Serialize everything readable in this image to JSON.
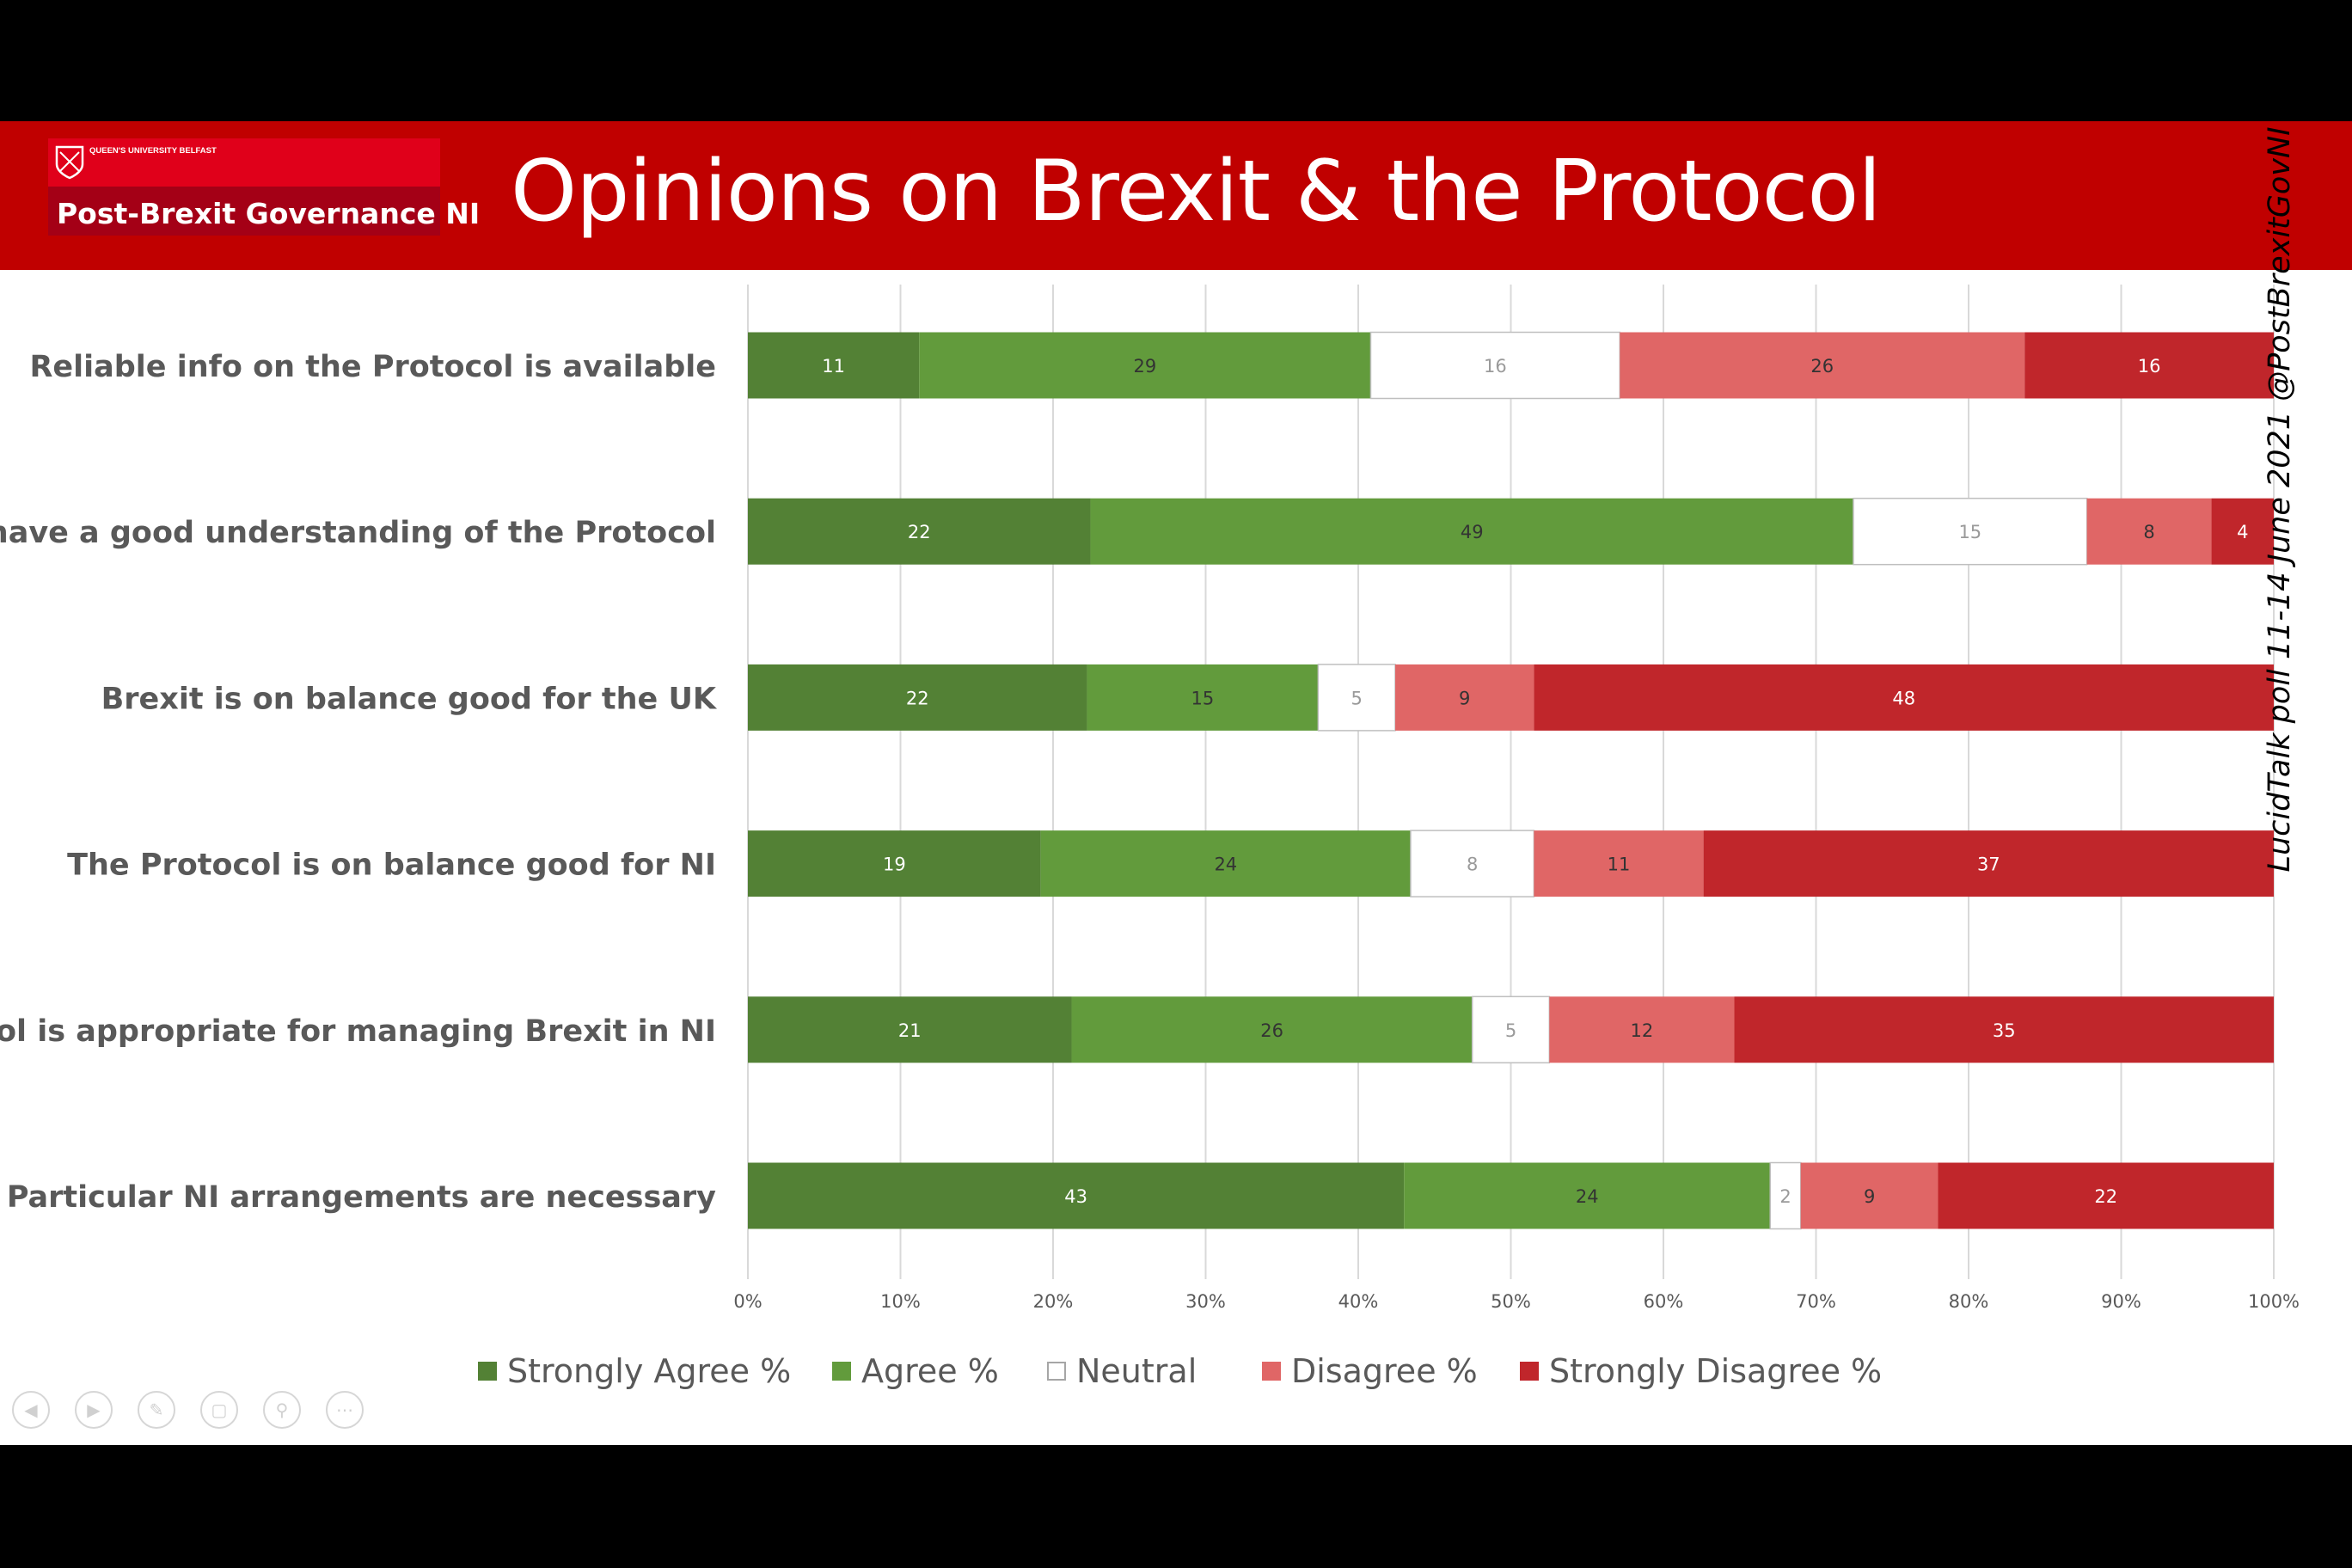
{
  "header": {
    "title": "Opinions on Brexit & the Protocol",
    "logo_university": "QUEEN'S UNIVERSITY BELFAST",
    "logo_group": "Post-Brexit Governance NI"
  },
  "side_note": "LucidTalk poll 11-14 June 2021 @PostBrexitGovNI",
  "colors": {
    "banner": "#c00000",
    "strongly_agree": "#538135",
    "agree": "#629b3c",
    "neutral": "#ffffff",
    "disagree": "#e06666",
    "strongly_disagree": "#c0262b"
  },
  "controls": [
    "previous-icon",
    "next-icon",
    "pen-icon",
    "slides-icon",
    "zoom-icon",
    "more-icon"
  ],
  "chart_data": {
    "type": "bar",
    "orientation": "horizontal",
    "stacked": true,
    "categories": [
      "Reliable info on the Protocol is available",
      "I have a good understanding of the Protocol",
      "Brexit is on balance good for the UK",
      "The Protocol is on balance good for NI",
      "Protocol is appropriate for managing Brexit in NI",
      "Particular NI arrangements are necessary"
    ],
    "series": [
      {
        "name": "Strongly Agree %",
        "color": "#538135",
        "values": [
          11,
          22,
          22,
          19,
          21,
          43
        ]
      },
      {
        "name": "Agree %",
        "color": "#629b3c",
        "values": [
          29,
          49,
          15,
          24,
          26,
          24
        ]
      },
      {
        "name": "Neutral",
        "color": "#ffffff",
        "values": [
          16,
          15,
          5,
          8,
          5,
          2
        ]
      },
      {
        "name": "Disagree %",
        "color": "#e06666",
        "values": [
          26,
          8,
          9,
          11,
          12,
          9
        ]
      },
      {
        "name": "Strongly Disagree %",
        "color": "#c0262b",
        "values": [
          16,
          4,
          48,
          37,
          35,
          22
        ]
      }
    ],
    "xticks": [
      "0%",
      "10%",
      "20%",
      "30%",
      "40%",
      "50%",
      "60%",
      "70%",
      "80%",
      "90%",
      "100%"
    ],
    "xlim": [
      0,
      100
    ],
    "grid": true,
    "legend_position": "bottom"
  }
}
